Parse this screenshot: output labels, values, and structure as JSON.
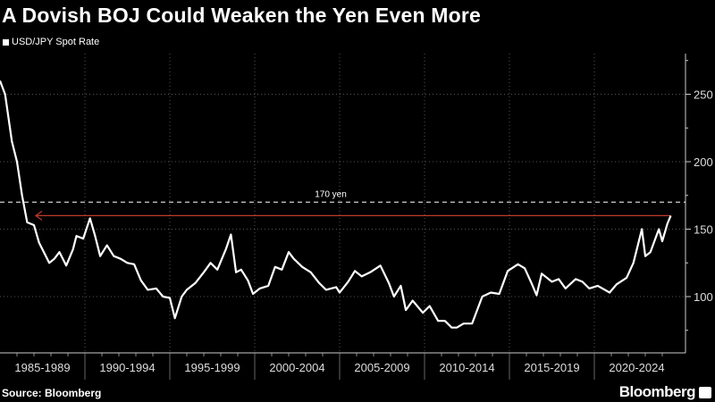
{
  "chart_data": {
    "type": "line",
    "title": "A Dovish BOJ Could Weaken the Yen Even More",
    "xlabel": "",
    "ylabel": "",
    "ylim": [
      58,
      280
    ],
    "xlim": [
      1985,
      2025
    ],
    "grid": true,
    "legend": "top-left",
    "y_ticks": [
      100,
      150,
      200,
      250
    ],
    "categories": [
      "1985-1989",
      "1990-1994",
      "1995-1999",
      "2000-2004",
      "2005-2009",
      "2010-2014",
      "2015-2019",
      "2020-2024"
    ],
    "series": [
      {
        "name": "USD/JPY Spot Rate",
        "color": "#ffffff",
        "x": [
          1985.0,
          1985.3,
          1985.7,
          1986.0,
          1986.3,
          1986.6,
          1987.0,
          1987.3,
          1987.9,
          1988.2,
          1988.5,
          1988.9,
          1989.3,
          1989.5,
          1989.9,
          1990.3,
          1990.6,
          1990.9,
          1991.3,
          1991.7,
          1992.1,
          1992.5,
          1992.9,
          1993.3,
          1993.7,
          1994.2,
          1994.6,
          1995.0,
          1995.3,
          1995.7,
          1996.0,
          1996.5,
          1997.0,
          1997.4,
          1997.8,
          1998.3,
          1998.6,
          1998.9,
          1999.2,
          1999.6,
          1999.9,
          2000.3,
          2000.8,
          2001.2,
          2001.6,
          2002.0,
          2002.3,
          2002.8,
          2003.3,
          2003.8,
          2004.2,
          2004.8,
          2005.0,
          2005.5,
          2005.9,
          2006.3,
          2006.8,
          2007.4,
          2007.9,
          2008.2,
          2008.6,
          2008.9,
          2009.3,
          2009.9,
          2010.3,
          2010.8,
          2011.2,
          2011.6,
          2011.9,
          2012.3,
          2012.8,
          2013.1,
          2013.4,
          2013.9,
          2014.4,
          2014.9,
          2015.5,
          2015.9,
          2016.3,
          2016.6,
          2016.9,
          2017.5,
          2017.9,
          2018.3,
          2018.9,
          2019.3,
          2019.7,
          2020.2,
          2020.9,
          2021.3,
          2021.9,
          2022.3,
          2022.8,
          2023.0,
          2023.3,
          2023.8,
          2024.0,
          2024.3,
          2024.5
        ],
        "values": [
          260,
          250,
          215,
          200,
          175,
          155,
          153,
          140,
          125,
          128,
          133,
          123,
          135,
          145,
          143,
          158,
          145,
          130,
          138,
          130,
          128,
          125,
          124,
          112,
          105,
          106,
          100,
          99,
          84,
          100,
          105,
          110,
          118,
          125,
          120,
          135,
          146,
          118,
          120,
          112,
          102,
          106,
          108,
          122,
          120,
          133,
          128,
          122,
          118,
          110,
          105,
          107,
          103,
          111,
          119,
          115,
          118,
          123,
          110,
          100,
          108,
          90,
          97,
          88,
          93,
          82,
          82,
          77,
          77,
          80,
          80,
          90,
          100,
          103,
          102,
          119,
          124,
          121,
          110,
          101,
          117,
          111,
          113,
          106,
          113,
          111,
          106,
          108,
          103,
          109,
          114,
          125,
          150,
          130,
          133,
          150,
          141,
          154,
          160
        ]
      }
    ],
    "annotations": [
      {
        "label": "170 yen",
        "value": 170,
        "style": "dashed",
        "color": "#ffffff"
      },
      {
        "label": "",
        "value": 160,
        "style": "arrow",
        "color": "#c0392b"
      }
    ]
  },
  "source": "Source: Bloomberg",
  "brand": "Bloomberg"
}
